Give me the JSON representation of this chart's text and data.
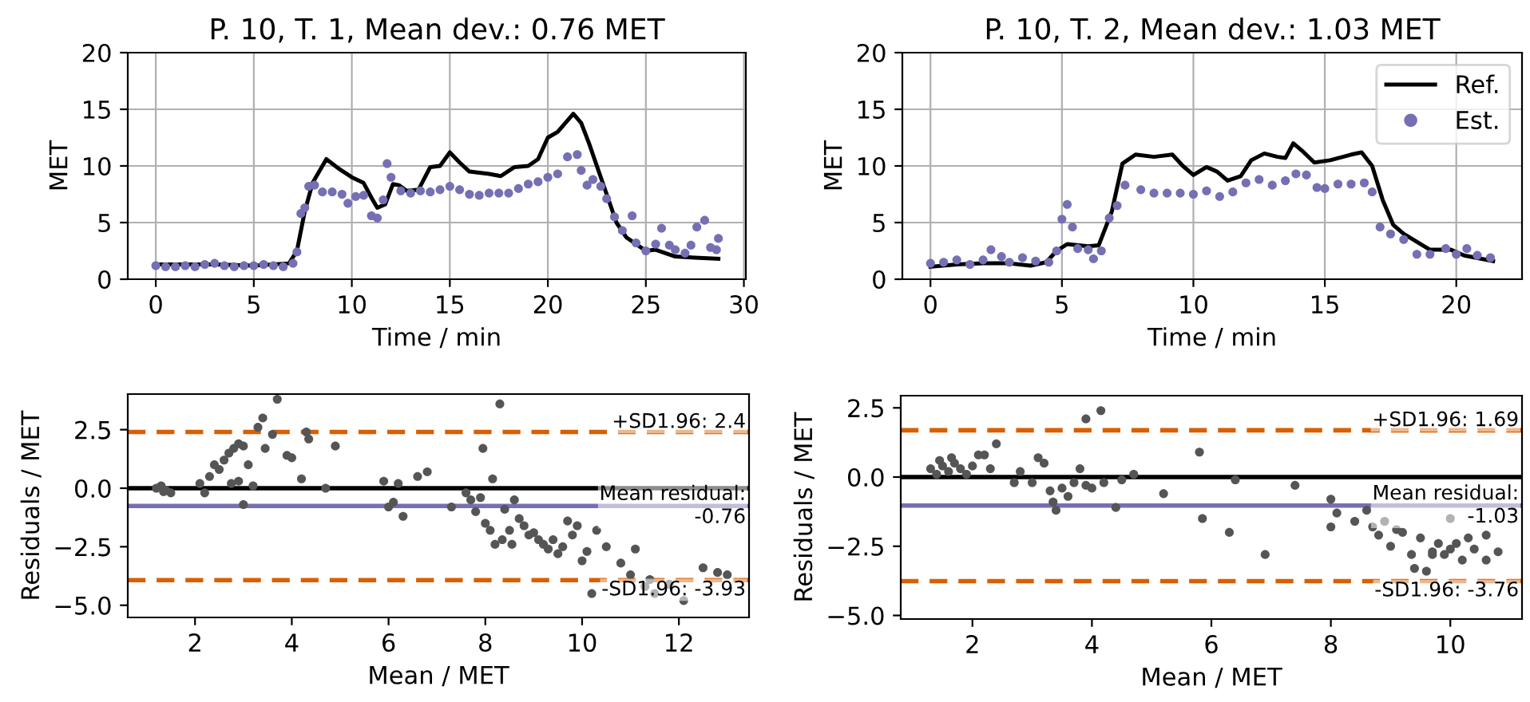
{
  "chart_data": [
    {
      "type": "line",
      "title": "P. 10, T. 1, Mean dev.: 0.76 MET",
      "xlabel": "Time / min",
      "ylabel": "MET",
      "xlim": [
        -1.43,
        30.1
      ],
      "xticks": [
        0,
        5,
        10,
        15,
        20,
        25,
        30
      ],
      "ylim": [
        0,
        20
      ],
      "yticks": [
        0,
        5,
        10,
        15,
        20
      ],
      "grid": true,
      "legend": false,
      "series": [
        {
          "type": "line",
          "color": "#000000",
          "x": [
            0,
            3,
            5,
            6.8,
            7.2,
            7.6,
            8,
            8.7,
            9.3,
            10,
            10.6,
            11,
            11.3,
            11.7,
            12.1,
            12.4,
            12.8,
            13.4,
            14,
            14.5,
            15,
            15.5,
            16,
            17,
            17.6,
            18.3,
            19,
            19.5,
            20,
            20.5,
            21.3,
            21.7,
            22.1,
            22.5,
            23,
            23.5,
            24,
            25,
            25.5,
            26.5,
            27.5,
            28.7
          ],
          "values": [
            1.3,
            1.3,
            1.2,
            1.4,
            2.5,
            6,
            8.5,
            10.6,
            9.8,
            9,
            8.5,
            7.2,
            6.3,
            6.6,
            8.4,
            8.3,
            7.8,
            7.9,
            9.9,
            10,
            11.2,
            10.3,
            9.5,
            9.3,
            9.1,
            9.9,
            10,
            10.6,
            12.5,
            13,
            14.6,
            13.8,
            12,
            10,
            7.5,
            5,
            3.7,
            2.5,
            2.6,
            2,
            1.9,
            1.8
          ]
        },
        {
          "type": "scatter",
          "color": "#7570b3",
          "x": [
            0,
            0.5,
            1,
            1.5,
            2,
            2.5,
            3,
            3.5,
            4,
            4.5,
            5,
            5.5,
            6,
            6.5,
            7,
            7.2,
            7.4,
            7.6,
            7.8,
            8.1,
            8.5,
            9,
            9.5,
            9.8,
            10.2,
            10.6,
            11,
            11.3,
            11.6,
            11.8,
            12,
            12.5,
            13,
            13.5,
            14,
            14.5,
            15,
            15.5,
            16,
            16.5,
            17,
            17.5,
            18,
            18.5,
            19,
            19.5,
            20,
            20.5,
            21,
            21.5,
            21.7,
            22,
            22.3,
            22.7,
            23,
            23.4,
            23.8,
            24.3,
            24.5,
            25,
            25.5,
            25.8,
            26.2,
            26.5,
            27,
            27.3,
            27.6,
            28,
            28.3,
            28.6,
            28.7
          ],
          "values": [
            1.2,
            1.1,
            1.1,
            1.2,
            1.1,
            1.3,
            1.4,
            1.2,
            1.1,
            1.2,
            1.2,
            1.3,
            1.2,
            1.1,
            1.4,
            2.4,
            5.8,
            6.3,
            8.2,
            8.3,
            7.7,
            7.7,
            7.5,
            6.7,
            7.3,
            7.4,
            5.6,
            5.4,
            7,
            10.2,
            9,
            7.8,
            7.6,
            7.8,
            7.7,
            7.9,
            8.2,
            7.9,
            7.5,
            7.4,
            7.6,
            7.6,
            7.6,
            8,
            8.4,
            8.6,
            9,
            9.3,
            10.8,
            11,
            9.6,
            8.3,
            8.8,
            8.2,
            7.1,
            5.5,
            4.3,
            5.6,
            3.2,
            2.5,
            3.1,
            4.5,
            3,
            2.6,
            2.3,
            3,
            4.6,
            5.2,
            2.8,
            2.6,
            3.6
          ]
        }
      ]
    },
    {
      "type": "line",
      "title": "P. 10, T. 2, Mean dev.: 1.03 MET",
      "xlabel": "Time / min",
      "ylabel": "MET",
      "xlim": [
        -1.07,
        22.5
      ],
      "xticks": [
        0,
        5,
        10,
        15,
        20
      ],
      "ylim": [
        0,
        20
      ],
      "yticks": [
        0,
        5,
        10,
        15,
        20
      ],
      "grid": true,
      "legend": "top right",
      "series": [
        {
          "type": "line",
          "name": "Ref.",
          "color": "#000000",
          "x": [
            0,
            1,
            2,
            3,
            3.8,
            4.4,
            4.8,
            5.2,
            6,
            6.4,
            6.9,
            7.3,
            7.8,
            8.5,
            9.2,
            9.6,
            10,
            10.5,
            10.9,
            11.3,
            11.8,
            12.2,
            12.7,
            13.2,
            13.5,
            13.8,
            14.2,
            14.6,
            15.2,
            16,
            16.4,
            16.8,
            17.2,
            17.6,
            18,
            18.5,
            19,
            19.8,
            20.3,
            21.4
          ],
          "values": [
            1.1,
            1.3,
            1.4,
            1.4,
            1.2,
            1.5,
            2.5,
            3.1,
            2.9,
            3,
            6,
            10.2,
            11,
            10.8,
            11,
            10,
            9.2,
            9.9,
            9.5,
            8.7,
            9.1,
            10.5,
            11.1,
            10.8,
            10.7,
            12,
            11.2,
            10.3,
            10.5,
            11,
            11.2,
            10,
            7,
            4.8,
            4,
            3.3,
            2.6,
            2.6,
            2.1,
            1.6
          ]
        },
        {
          "type": "scatter",
          "name": "Est.",
          "color": "#7570b3",
          "x": [
            0,
            0.5,
            1,
            1.5,
            2,
            2.3,
            2.7,
            3,
            3.5,
            4,
            4.5,
            4.8,
            5,
            5.2,
            5.4,
            5.6,
            6,
            6.2,
            6.5,
            6.8,
            7.1,
            7.4,
            8,
            8.5,
            9,
            9.5,
            10,
            10.5,
            11,
            11.5,
            12,
            12.5,
            13,
            13.5,
            13.9,
            14.3,
            14.7,
            15,
            15.5,
            16,
            16.5,
            16.8,
            17.1,
            17.5,
            18,
            18.5,
            19,
            19.6,
            20,
            20.4,
            20.8,
            21.3
          ],
          "values": [
            1.4,
            1.5,
            1.7,
            1.3,
            1.7,
            2.6,
            2,
            1.5,
            1.9,
            1.6,
            1.5,
            2.5,
            5.3,
            6.6,
            4.6,
            2.7,
            2.6,
            1.8,
            2.5,
            5.4,
            6.5,
            8.3,
            7.9,
            7.6,
            7.6,
            7.6,
            7.5,
            7.8,
            7.3,
            7.7,
            8.5,
            8.8,
            8.3,
            8.7,
            9.3,
            9.2,
            8.1,
            8,
            8.4,
            8.4,
            8.5,
            7.7,
            4.6,
            4,
            3.5,
            2.2,
            2.2,
            2.7,
            2.2,
            2.7,
            2.1,
            1.9
          ]
        }
      ]
    },
    {
      "type": "scatter",
      "xlabel": "Mean / MET",
      "ylabel": "Residuals / MET",
      "xlim": [
        0.61,
        13.45
      ],
      "xticks": [
        2,
        4,
        6,
        8,
        10,
        12
      ],
      "ylim": [
        -5.52,
        4.02
      ],
      "yticks": [
        {
          "value": -5,
          "label": "−5.0"
        },
        {
          "value": -2.5,
          "label": "−2.5"
        },
        {
          "value": 0,
          "label": "0.0"
        },
        {
          "value": 2.5,
          "label": "2.5"
        }
      ],
      "grid": false,
      "legend": false,
      "series": [
        {
          "color": "#555555",
          "x": [
            1.2,
            1.3,
            1.4,
            1.5,
            1.35,
            2.1,
            2.2,
            2.3,
            2.4,
            2.5,
            2.6,
            2.7,
            2.8,
            2.9,
            3,
            2.75,
            2.9,
            3,
            3.1,
            3.2,
            3.3,
            3.4,
            3.45,
            3.6,
            3.7,
            3.9,
            4,
            4.2,
            4.3,
            4.35,
            4.7,
            4.9,
            5.9,
            6,
            6.1,
            6.2,
            6.3,
            6.6,
            6.8,
            7.3,
            7.6,
            7.7,
            7.9,
            7.8,
            7.95,
            8,
            8.1,
            8.2,
            8.15,
            8.3,
            8.35,
            8.4,
            8.5,
            8.55,
            8.6,
            8.7,
            8.8,
            8.9,
            9,
            9.1,
            9.2,
            9.3,
            9.4,
            9.5,
            9.6,
            9.7,
            9.8,
            9.9,
            10.1,
            10,
            10.3,
            10.5,
            10.8,
            10.2,
            11,
            11.1,
            11.3,
            11.4,
            11.8,
            12.1,
            12.5,
            12.8,
            13,
            11.5
          ],
          "values": [
            0,
            0.1,
            -0.1,
            -0.2,
            -0.15,
            0.2,
            -0.2,
            0.5,
            1,
            0.8,
            1.2,
            1.5,
            1.7,
            1.9,
            1.8,
            0.2,
            0.3,
            -0.7,
            1,
            0.1,
            2.6,
            3,
            1.7,
            2.3,
            3.8,
            1.4,
            1.3,
            0.4,
            2.4,
            2.1,
            0,
            1.8,
            0.3,
            -0.8,
            -0.6,
            0.2,
            -1.2,
            0.5,
            0.7,
            -0.8,
            -0.2,
            -0.5,
            -0.4,
            -1,
            1.7,
            -1.5,
            -1.8,
            -2.4,
            0.4,
            3.6,
            -2.2,
            -0.9,
            -1.8,
            -2.4,
            -0.5,
            -1.3,
            -1.6,
            -2,
            -1.9,
            -2.2,
            -2.4,
            -2.6,
            -2.2,
            -2.8,
            -2.5,
            -1.4,
            -2,
            -1.6,
            -2.7,
            -3.1,
            -1.8,
            -2.5,
            -3.2,
            -4.5,
            -3.7,
            -2.6,
            -4.2,
            -3.9,
            -4.1,
            -4.8,
            -3.4,
            -3.6,
            -3.7,
            -4.5
          ]
        }
      ],
      "ref_lines": [
        {
          "axis": "y",
          "value": 0,
          "color": "#000000",
          "line_style": "solid"
        },
        {
          "axis": "y",
          "value": -0.76,
          "label": "Mean residual:\n-0.76",
          "color": "#7570b3",
          "line_style": "solid"
        },
        {
          "axis": "y",
          "value": 2.4,
          "label": "+SD1.96: 2.4",
          "color": "#d95f02",
          "line_style": "dashed"
        },
        {
          "axis": "y",
          "value": -3.93,
          "label": "-SD1.96: -3.93",
          "color": "#d95f02",
          "line_style": "dashed"
        }
      ]
    },
    {
      "type": "scatter",
      "xlabel": "Mean / MET",
      "ylabel": "Residuals / MET",
      "xlim": [
        0.8,
        11.2
      ],
      "xticks": [
        2,
        4,
        6,
        8,
        10
      ],
      "ylim": [
        -5.13,
        2.94
      ],
      "yticks": [
        {
          "value": -5,
          "label": "−5.0"
        },
        {
          "value": -2.5,
          "label": "−2.5"
        },
        {
          "value": 0,
          "label": "0.0"
        },
        {
          "value": 2.5,
          "label": "2.5"
        }
      ],
      "grid": false,
      "legend": false,
      "series": [
        {
          "color": "#555555",
          "x": [
            1.3,
            1.4,
            1.5,
            1.6,
            1.7,
            1.8,
            1.9,
            2,
            2.1,
            2.2,
            2.3,
            2.4,
            1.45,
            1.65,
            2.7,
            2.8,
            3,
            3.1,
            3.2,
            3.3,
            3.35,
            3.4,
            3.5,
            3.6,
            3.7,
            3.8,
            3.9,
            4,
            4.2,
            4.4,
            4.5,
            4.7,
            3.9,
            4.15,
            5.2,
            5.8,
            5.85,
            6.3,
            6.4,
            6.9,
            7.4,
            8,
            8,
            8.1,
            8.4,
            8.6,
            8.7,
            8.8,
            8.9,
            9,
            9.1,
            9.2,
            9.35,
            9.4,
            9.5,
            9.6,
            9.7,
            9.8,
            9.9,
            10,
            10.1,
            10.2,
            10.3,
            10.4,
            10.6,
            10.6,
            10.8,
            9.7,
            10
          ],
          "values": [
            0.3,
            0.1,
            0.4,
            0.2,
            0.5,
            0.3,
            0.1,
            0.4,
            0.8,
            0.8,
            0.3,
            1.2,
            0.6,
            0.7,
            -0.2,
            0.2,
            -0.2,
            0.7,
            0.5,
            -0.5,
            -0.9,
            -1.2,
            -0.4,
            -0.7,
            -0.2,
            0.3,
            -0.3,
            -0.4,
            -0.2,
            -1.1,
            -0.1,
            0.1,
            2.1,
            2.4,
            -0.6,
            0.9,
            -1.5,
            -2,
            -0.1,
            -2.8,
            -0.3,
            -0.8,
            -1.8,
            -1.3,
            -1.6,
            -1.2,
            -1.8,
            -2.1,
            -1.6,
            -2.5,
            -1.9,
            -2,
            -2.8,
            -3.3,
            -2.2,
            -3.4,
            -2.7,
            -2.4,
            -2.8,
            -2.6,
            -2.4,
            -3,
            -2.2,
            -2.6,
            -2.1,
            -3,
            -2.7,
            -2.8,
            -1.5
          ]
        }
      ],
      "ref_lines": [
        {
          "axis": "y",
          "value": 0,
          "color": "#000000",
          "line_style": "solid"
        },
        {
          "axis": "y",
          "value": -1.03,
          "label": "Mean residual:\n-1.03",
          "color": "#7570b3",
          "line_style": "solid"
        },
        {
          "axis": "y",
          "value": 1.69,
          "label": "+SD1.96: 1.69",
          "color": "#d95f02",
          "line_style": "dashed"
        },
        {
          "axis": "y",
          "value": -3.76,
          "label": "-SD1.96: -3.76",
          "color": "#d95f02",
          "line_style": "dashed"
        }
      ]
    }
  ]
}
